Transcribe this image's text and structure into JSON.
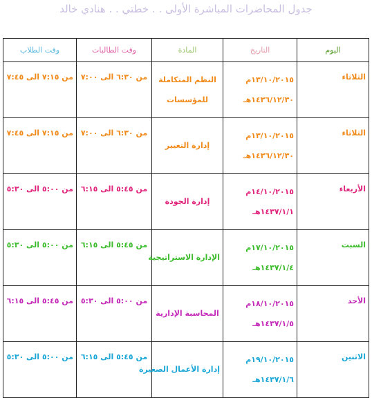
{
  "title": "جدول المحاضرات المباشرة الأولى . . خطتي . . هنادي خالد",
  "colors": {
    "title": "#c9bfe0",
    "border": "#222222",
    "header_day": "#5a9a2e",
    "header_date": "#e59aa8",
    "header_subject": "#9cc46c",
    "header_female": "#e064a8",
    "header_male": "#5bb8e0"
  },
  "headers": {
    "day": "اليوم",
    "date": "التاريخ",
    "subject": "المادة",
    "female": "وقت الطالبات",
    "male": "وقت الطلاب"
  },
  "rows": [
    {
      "color": "#f08a1a",
      "day": "الثلاثاء",
      "date_g": "١٣/١٠/٢٠١٥م",
      "date_h": "١٤٣٦/١٢/٣٠هـ",
      "subject": [
        "النظم المتكاملة",
        "للمؤسسات"
      ],
      "female": "من ٦:٣٠ الى ٧:٠٠",
      "male": "من ٧:١٥ الى ٧:٤٥"
    },
    {
      "color": "#f08a1a",
      "day": "الثلاثاء",
      "date_g": "١٣/١٠/٢٠١٥م",
      "date_h": "١٤٣٦/١٢/٣٠هـ",
      "subject": [
        "إدارة التغيير"
      ],
      "female": "من ٦:٣٠ الى ٧:٠٠",
      "male": "من ٧:١٥ الى ٧:٤٥"
    },
    {
      "color": "#e0247c",
      "day": "الأربعاء",
      "date_g": "١٤/١٠/٢٠١٥م",
      "date_h": "١٤٣٧/١/١هـ",
      "subject": [
        "إدارة الجودة"
      ],
      "female": "من ٥:٤٥ الى ٦:١٥",
      "male": "من ٥:٠٠ الى ٥:٣٠"
    },
    {
      "color": "#3cbc2c",
      "day": "السبت",
      "date_g": "١٧/١٠/٢٠١٥م",
      "date_h": "١٤٣٧/١/٤هـ",
      "subject": [
        "الإدارة الاستراتيجية"
      ],
      "female": "من ٥:٤٥ الى ٦:١٥",
      "male": "من ٥:٠٠ الى ٥:٣٠"
    },
    {
      "color": "#c42ab8",
      "day": "الأحد",
      "date_g": "١٨/١٠/٢٠١٥م",
      "date_h": "١٤٣٧/١/٥هـ",
      "subject": [
        "المحاسبة الإدارية"
      ],
      "female": "من ٥:٠٠ الى ٥:٣٠",
      "male": "من ٥:٤٥ الى ٦:١٥"
    },
    {
      "color": "#1aa6d6",
      "day": "الاثنين",
      "date_g": "١٩/١٠/٢٠١٥م",
      "date_h": "١٤٣٧/١/٦هـ",
      "subject": [
        "إدارة الأعمال الصغيرة"
      ],
      "female": "من ٥:٤٥ الى ٦:١٥",
      "male": "من ٥:٠٠ الى ٥:٣٠"
    }
  ]
}
